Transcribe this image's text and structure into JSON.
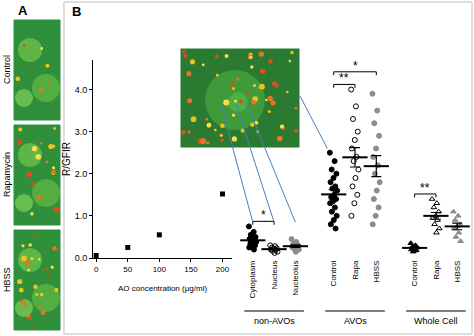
{
  "figure": {
    "panels": [
      "A",
      "B"
    ],
    "micrographs": [
      "Control",
      "Rapamycin",
      "HBSS"
    ]
  },
  "chart_data": [
    {
      "type": "scatter",
      "x_label": "AO concentration (μg/ml)",
      "y_label": "R/GFIR",
      "x": [
        0,
        50,
        100,
        200
      ],
      "values": [
        0.06,
        0.25,
        0.55,
        1.52
      ],
      "xlim": [
        -5,
        215
      ],
      "xticks": [
        0,
        50,
        100,
        150,
        200
      ],
      "ylim": [
        0,
        4.7
      ],
      "yticks": [
        {
          "value": 0,
          "label": "0.0"
        },
        {
          "value": 1,
          "label": "1.0"
        },
        {
          "value": 2,
          "label": "2.0"
        },
        {
          "value": 3,
          "label": "3.0"
        },
        {
          "value": 4,
          "label": "4.0"
        }
      ],
      "marker": "square",
      "color": "#000000"
    },
    {
      "type": "strip",
      "groups": [
        {
          "label": "non-AVOs",
          "series": [
            {
              "name": "Cytoplasm",
              "marker": "circle",
              "color": "#000000",
              "values": [
                0.75,
                0.62,
                0.55,
                0.5,
                0.48,
                0.45,
                0.42,
                0.4,
                0.38,
                0.35,
                0.33,
                0.3,
                0.28,
                0.25,
                0.2
              ],
              "mean": 0.42,
              "error": 0.04
            },
            {
              "name": "Nucleus",
              "marker": "circle-open",
              "color": "#000000",
              "values": [
                0.3,
                0.28,
                0.25,
                0.23,
                0.22,
                0.2,
                0.19,
                0.17,
                0.15,
                0.12
              ],
              "mean": 0.21,
              "error": 0.02
            },
            {
              "name": "Nucleolus",
              "marker": "circle",
              "color": "#8c8c8c",
              "values": [
                0.45,
                0.38,
                0.33,
                0.3,
                0.28,
                0.26,
                0.24,
                0.22,
                0.2,
                0.15
              ],
              "mean": 0.28,
              "error": 0.03
            }
          ]
        },
        {
          "label": "AVOs",
          "series": [
            {
              "name": "Control",
              "marker": "circle",
              "color": "#000000",
              "values": [
                2.5,
                2.3,
                2.1,
                2.0,
                1.9,
                1.8,
                1.7,
                1.65,
                1.6,
                1.5,
                1.45,
                1.4,
                1.35,
                1.3,
                1.2,
                1.1,
                1.0,
                0.9,
                0.8,
                0.7
              ],
              "mean": 1.51,
              "error": 0.11
            },
            {
              "name": "Rapa",
              "marker": "circle-open",
              "color": "#000000",
              "values": [
                4.0,
                3.6,
                3.3,
                3.0,
                2.8,
                2.6,
                2.4,
                2.3,
                2.1,
                1.9,
                1.7,
                1.5,
                1.3,
                1.0
              ],
              "mean": 2.39,
              "error": 0.23
            },
            {
              "name": "HBSS",
              "marker": "circle",
              "color": "#8c8c8c",
              "values": [
                3.9,
                3.5,
                3.2,
                2.9,
                2.6,
                2.4,
                2.2,
                2.0,
                1.8,
                1.6,
                1.4,
                1.2,
                1.0,
                0.8
              ],
              "mean": 2.18,
              "error": 0.25
            }
          ]
        },
        {
          "label": "Whole Cell",
          "series": [
            {
              "name": "Control",
              "marker": "triangle",
              "color": "#000000",
              "values": [
                0.35,
                0.3,
                0.27,
                0.25,
                0.22,
                0.2,
                0.18,
                0.15
              ],
              "mean": 0.24,
              "error": 0.02
            },
            {
              "name": "Rapa",
              "marker": "triangle-open",
              "color": "#000000",
              "values": [
                1.4,
                1.3,
                1.2,
                1.1,
                1.0,
                0.95,
                0.9,
                0.8,
                0.7,
                0.6
              ],
              "mean": 1.0,
              "error": 0.08
            },
            {
              "name": "HBSS",
              "marker": "triangle",
              "color": "#8c8c8c",
              "values": [
                1.1,
                1.0,
                0.9,
                0.8,
                0.75,
                0.7,
                0.6,
                0.5,
                0.4
              ],
              "mean": 0.75,
              "error": 0.08
            }
          ]
        }
      ],
      "annotations": [
        {
          "text": "*",
          "group": "non-AVOs",
          "between": [
            "Cytoplasm",
            "Nucleus"
          ]
        },
        {
          "text": "**",
          "group": "AVOs",
          "between": [
            "Control",
            "Rapa"
          ]
        },
        {
          "text": "*",
          "group": "AVOs",
          "between": [
            "Control",
            "HBSS"
          ]
        },
        {
          "text": "**",
          "group": "Whole Cell",
          "between": [
            "Control",
            "Rapa"
          ]
        }
      ]
    }
  ]
}
